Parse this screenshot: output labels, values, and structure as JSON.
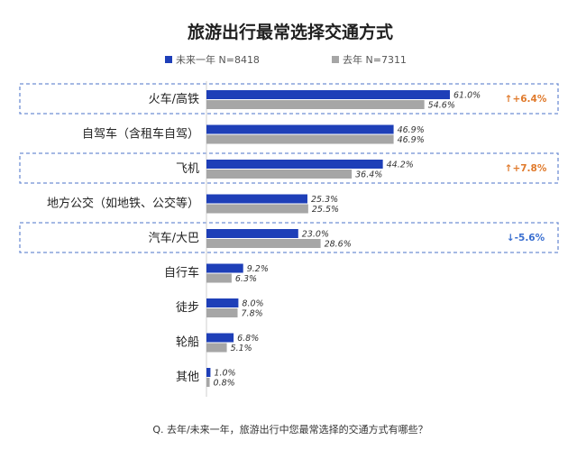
{
  "chart_data": {
    "type": "bar",
    "orientation": "horizontal",
    "title": "旅游出行最常选择交通方式",
    "categories": [
      "火车/高铁",
      "自驾车（含租车自驾）",
      "飞机",
      "地方公交（如地铁、公交等）",
      "汽车/大巴",
      "自行车",
      "徒步",
      "轮船",
      "其他"
    ],
    "series": [
      {
        "name": "未来一年 N=8418",
        "color": "#1e3fb8",
        "values": [
          61.0,
          46.9,
          44.2,
          25.3,
          23.0,
          9.2,
          8.0,
          6.8,
          1.0
        ]
      },
      {
        "name": "去年 N=7311",
        "color": "#a6a6a6",
        "values": [
          54.6,
          46.9,
          36.4,
          25.5,
          28.6,
          6.3,
          7.8,
          5.1,
          0.8
        ]
      }
    ],
    "value_labels": [
      [
        "61.0%",
        "54.6%"
      ],
      [
        "46.9%",
        "46.9%"
      ],
      [
        "44.2%",
        "36.4%"
      ],
      [
        "25.3%",
        "25.5%"
      ],
      [
        "23.0%",
        "28.6%"
      ],
      [
        "9.2%",
        "6.3%"
      ],
      [
        "8.0%",
        "7.8%"
      ],
      [
        "6.8%",
        "5.1%"
      ],
      [
        "1.0%",
        "0.8%"
      ]
    ],
    "highlights": [
      {
        "category": "火车/高铁",
        "text": "↑+6.4%",
        "color": "#e07a2c"
      },
      {
        "category": "飞机",
        "text": "↑+7.8%",
        "color": "#e07a2c"
      },
      {
        "category": "汽车/大巴",
        "text": "↓-5.6%",
        "color": "#3a6fd0"
      }
    ],
    "xlim": [
      0,
      100
    ],
    "grid": false,
    "legend_position": "top-left",
    "question": "Q. 去年/未来一年，旅游出行中您最常选择的交通方式有哪些？"
  }
}
